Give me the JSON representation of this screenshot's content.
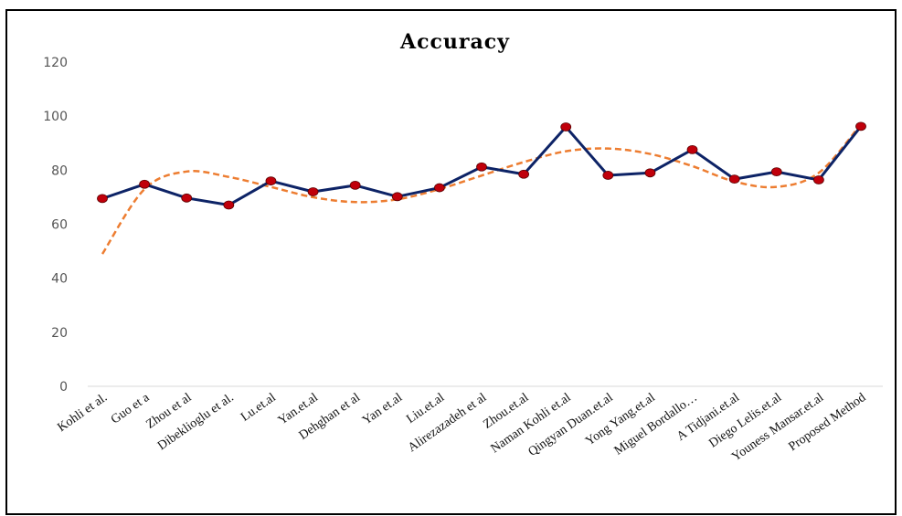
{
  "chart_data": {
    "type": "line",
    "title": "Accuracy",
    "xlabel": "",
    "ylabel": "",
    "ylim": [
      0,
      120
    ],
    "yticks": [
      0,
      20,
      40,
      60,
      80,
      100,
      120
    ],
    "grid": false,
    "categories": [
      "Kohli et al.",
      "Guo et a",
      "Zhou et al",
      "Dibeklioglu et al.",
      "Lu.et.al",
      "Yan.et.al",
      "Dehghan et al",
      "Yan et.al",
      "Liu.et.al",
      "Alirezazadeh et al",
      "Zhou.et.al",
      "Naman Kohli et.al",
      "Qingyan Duan.et.al",
      "Yong Yang.et.al",
      "Miguel Bordallo…",
      "A Tidjani.et.al",
      "Diego Lelis.et.al",
      "Youness Mansar.et.al",
      "Proposed Method"
    ],
    "series": [
      {
        "values": [
          69.5,
          74.8,
          69.7,
          67.1,
          76.0,
          72.0,
          74.4,
          70.2,
          73.5,
          81.2,
          78.5,
          96.0,
          78.1,
          79.0,
          87.6,
          76.7,
          79.4,
          76.4,
          96.2
        ],
        "color": "#0d2366",
        "marker_color": "#c0000b"
      }
    ],
    "trendline": {
      "style": "dashed",
      "color": "#ed7d31",
      "values": [
        49,
        73,
        79.5,
        77.5,
        73.8,
        70,
        68.2,
        69.2,
        73,
        78,
        83,
        87,
        88,
        86,
        81.5,
        75.8,
        73.8,
        79,
        97
      ]
    }
  }
}
